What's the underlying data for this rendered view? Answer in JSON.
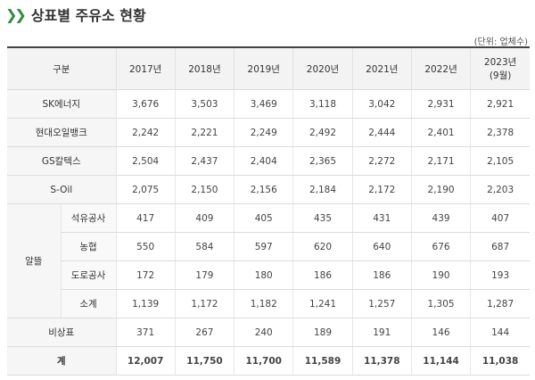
{
  "title": "상표별 주유소 현황",
  "unit": "(단위: 업체수)",
  "columns": [
    "구분",
    "2017년",
    "2018년",
    "2019년",
    "2020년",
    "2021년",
    "2022년",
    "2023년",
    "(9월)"
  ],
  "rows": [
    {
      "label": "SK에너지",
      "values": [
        "3,676",
        "3,503",
        "3,469",
        "3,118",
        "3,042",
        "2,931",
        "2,921"
      ]
    },
    {
      "label": "현대오일뱅크",
      "values": [
        "2,242",
        "2,221",
        "2,249",
        "2,492",
        "2,444",
        "2,401",
        "2,378"
      ]
    },
    {
      "label": "GS칼텍스",
      "values": [
        "2,504",
        "2,437",
        "2,404",
        "2,365",
        "2,272",
        "2,171",
        "2,105"
      ]
    },
    {
      "label": "S-Oil",
      "values": [
        "2,075",
        "2,150",
        "2,156",
        "2,184",
        "2,172",
        "2,190",
        "2,203"
      ]
    }
  ],
  "altteul": {
    "label": "알뜰",
    "rows": [
      {
        "label": "석유공사",
        "values": [
          "417",
          "409",
          "405",
          "435",
          "431",
          "439",
          "407"
        ]
      },
      {
        "label": "농협",
        "values": [
          "550",
          "584",
          "597",
          "620",
          "640",
          "676",
          "687"
        ]
      },
      {
        "label": "도로공사",
        "values": [
          "172",
          "179",
          "180",
          "186",
          "186",
          "190",
          "193"
        ]
      },
      {
        "label": "소계",
        "values": [
          "1,139",
          "1,172",
          "1,182",
          "1,241",
          "1,257",
          "1,305",
          "1,287"
        ]
      }
    ]
  },
  "bottom": [
    {
      "label": "비상표",
      "values": [
        "371",
        "267",
        "240",
        "189",
        "191",
        "146",
        "144"
      ]
    },
    {
      "label": "계",
      "values": [
        "12,007",
        "11,750",
        "11,700",
        "11,589",
        "11,378",
        "11,144",
        "11,038"
      ]
    }
  ]
}
